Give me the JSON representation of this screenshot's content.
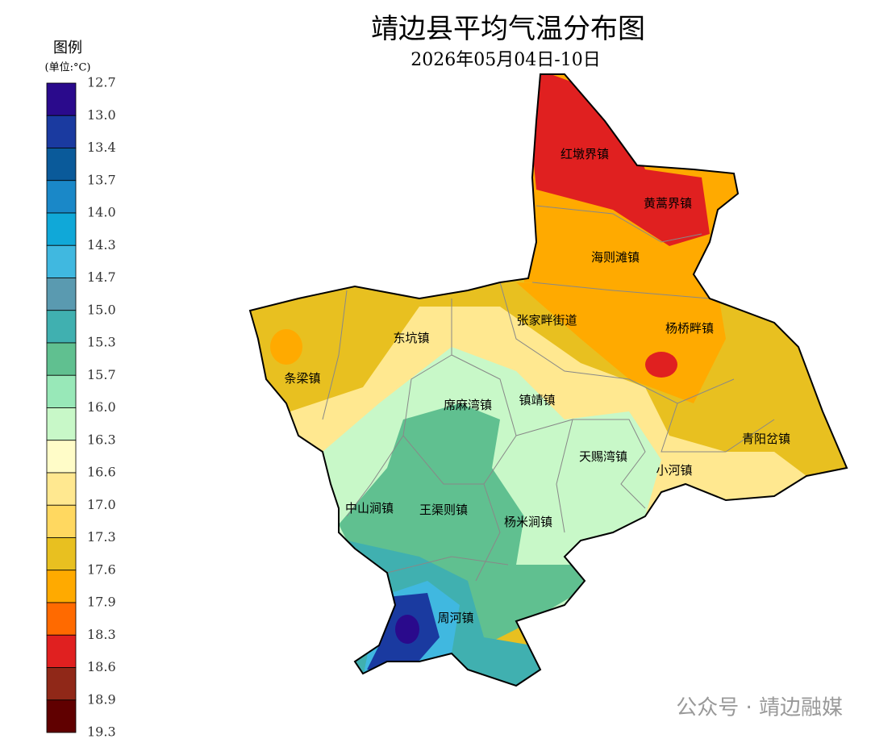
{
  "title": "靖边县平均气温分布图",
  "subtitle": "2026年05月04日-10日",
  "legend": {
    "title": "图例",
    "unit": "(单位:°C)",
    "labels": [
      "12.7",
      "13.0",
      "13.4",
      "13.7",
      "14.0",
      "14.3",
      "14.7",
      "15.0",
      "15.3",
      "15.7",
      "16.0",
      "16.3",
      "16.6",
      "17.0",
      "17.3",
      "17.6",
      "17.9",
      "18.3",
      "18.6",
      "18.9",
      "19.3"
    ],
    "colors": [
      "#2a0a8c",
      "#1a3aa0",
      "#0a5a9a",
      "#1a88c8",
      "#10a8d8",
      "#40b8e0",
      "#5a9ab0",
      "#40b0b0",
      "#60c090",
      "#98e8b8",
      "#c8f8c8",
      "#fffcc8",
      "#ffe890",
      "#ffd860",
      "#e8c020",
      "#ffaa00",
      "#ff6a00",
      "#e02020",
      "#902818",
      "#600000"
    ]
  },
  "towns": [
    "红墩界镇",
    "黄蒿界镇",
    "海则滩镇",
    "张家畔街道",
    "杨桥畔镇",
    "东坑镇",
    "条梁镇",
    "席麻湾镇",
    "镇靖镇",
    "青阳岔镇",
    "天赐湾镇",
    "小河镇",
    "中山涧镇",
    "王渠则镇",
    "杨米涧镇",
    "周河镇"
  ],
  "watermark": "公众号 · 靖边融媒"
}
